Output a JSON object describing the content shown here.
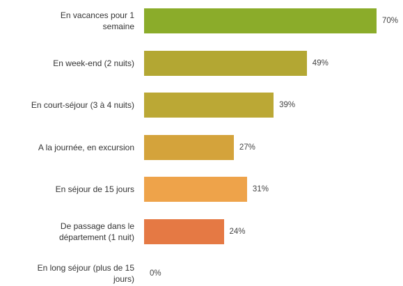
{
  "chart_data": {
    "type": "bar",
    "orientation": "horizontal",
    "categories": [
      "En vacances pour 1\nsemaine",
      "En week-end (2 nuits)",
      "En court-séjour (3 à 4 nuits)",
      "A la journée, en excursion",
      "En séjour de 15 jours",
      "De passage dans le\ndépartement (1 nuit)",
      "En long séjour (plus de 15\njours)"
    ],
    "values": [
      70,
      49,
      39,
      27,
      31,
      24,
      0
    ],
    "value_labels": [
      "70%",
      "49%",
      "39%",
      "27%",
      "31%",
      "24%",
      "0%"
    ],
    "colors": [
      "#8bac2a",
      "#b3a733",
      "#bba835",
      "#d4a33b",
      "#eea34a",
      "#e57944",
      "#e06a40"
    ]
  }
}
